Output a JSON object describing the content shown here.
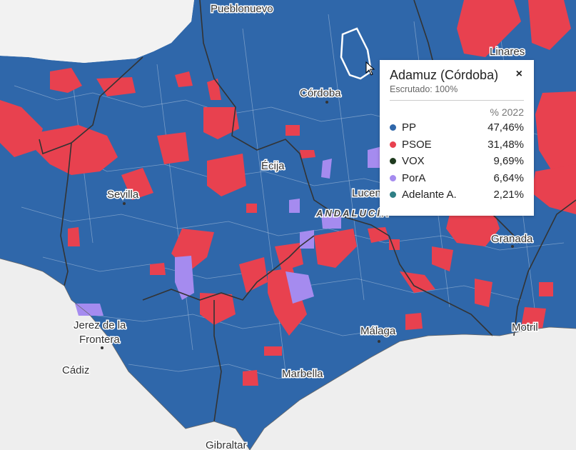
{
  "map": {
    "region_label": "ANDALUCÍA",
    "colors": {
      "pp": "#2f67aa",
      "psoe": "#e8414f",
      "pora": "#a58bef",
      "sea": "#eeeeee",
      "border": "#333333"
    },
    "places": {
      "pueblonuevo": "Pueblonuevo",
      "linares": "Linares",
      "cordoba": "Córdoba",
      "ecija": "Écija",
      "lucena": "Lucena",
      "sevilla": "Sevilla",
      "granada": "Granada",
      "jerez1": "Jerez de la",
      "jerez2": "Frontera",
      "malaga": "Málaga",
      "motril": "Motril",
      "cadiz": "Cádiz",
      "marbella": "Marbella",
      "gibraltar": "Gibraltar"
    }
  },
  "popup": {
    "title": "Adamuz (Córdoba)",
    "close_symbol": "×",
    "subtitle": "Escrutado: 100%",
    "column_header": "% 2022",
    "results": [
      {
        "party": "PP",
        "value": "47,46%",
        "color": "#2f67aa"
      },
      {
        "party": "PSOE",
        "value": "31,48%",
        "color": "#e8414f"
      },
      {
        "party": "VOX",
        "value": "9,69%",
        "color": "#1e3a1e"
      },
      {
        "party": "PorA",
        "value": "6,64%",
        "color": "#a58bef"
      },
      {
        "party": "Adelante A.",
        "value": "2,21%",
        "color": "#2f7f85"
      }
    ]
  }
}
